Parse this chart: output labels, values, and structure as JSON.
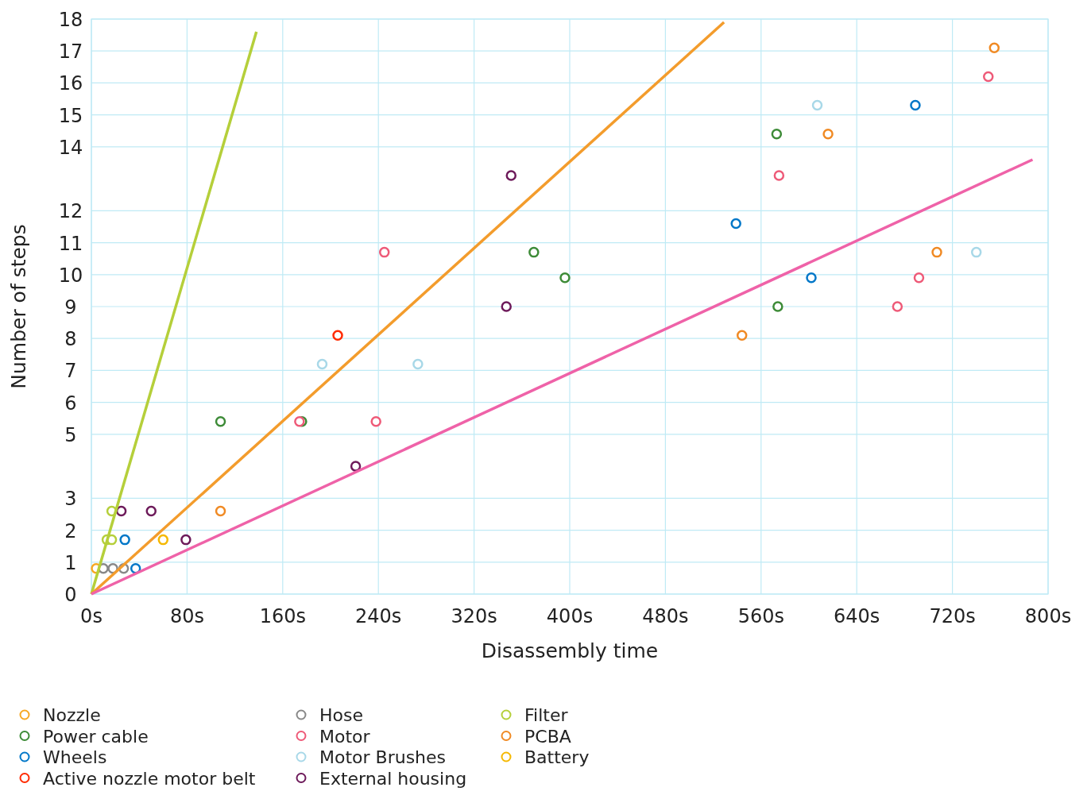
{
  "chart_data": {
    "type": "scatter",
    "xlabel": "Disassembly time",
    "ylabel": "Number of steps",
    "xlim": [
      0,
      800
    ],
    "ylim": [
      0,
      18
    ],
    "xticks": [
      {
        "value": 0,
        "label": "0s"
      },
      {
        "value": 80,
        "label": "80s"
      },
      {
        "value": 160,
        "label": "160s"
      },
      {
        "value": 240,
        "label": "240s"
      },
      {
        "value": 320,
        "label": "320s"
      },
      {
        "value": 400,
        "label": "400s"
      },
      {
        "value": 480,
        "label": "480s"
      },
      {
        "value": 560,
        "label": "560s"
      },
      {
        "value": 640,
        "label": "640s"
      },
      {
        "value": 720,
        "label": "720s"
      },
      {
        "value": 800,
        "label": "800s"
      }
    ],
    "yticks": [
      0,
      1,
      2,
      3,
      5,
      6,
      7,
      8,
      9,
      10,
      11,
      12,
      14,
      15,
      16,
      17,
      18
    ],
    "grid": true,
    "legend": "bottom left",
    "marker": "circle",
    "series": [
      {
        "name": "Nozzle",
        "color": "#f7a823",
        "x": [
          4
        ],
        "values": [
          0.8
        ]
      },
      {
        "name": "Power cable",
        "color": "#3d8b37",
        "x": [
          108,
          176,
          370,
          396,
          573,
          574
        ],
        "values": [
          5.4,
          5.4,
          10.7,
          9.9,
          14.4,
          9.0
        ]
      },
      {
        "name": "Wheels",
        "color": "#0077c8",
        "x": [
          28,
          37,
          539,
          602,
          689
        ],
        "values": [
          1.7,
          0.8,
          11.6,
          9.9,
          15.3
        ]
      },
      {
        "name": "Active nozzle motor belt",
        "color": "#ff2a00",
        "x": [
          206
        ],
        "values": [
          8.1
        ]
      },
      {
        "name": "Hose",
        "color": "#888888",
        "x": [
          10,
          18,
          27
        ],
        "values": [
          0.8,
          0.8,
          0.8
        ]
      },
      {
        "name": "Motor",
        "color": "#ee5a78",
        "x": [
          174,
          238,
          245,
          575,
          674,
          692,
          750
        ],
        "values": [
          5.4,
          5.4,
          10.7,
          13.1,
          9.0,
          9.9,
          16.2
        ]
      },
      {
        "name": "Motor Brushes",
        "color": "#a8d8e8",
        "x": [
          193,
          273,
          607,
          740
        ],
        "values": [
          7.2,
          7.2,
          15.3,
          10.7
        ]
      },
      {
        "name": "External housing",
        "color": "#6d1a5a",
        "x": [
          25,
          50,
          79,
          221,
          347,
          351
        ],
        "values": [
          2.6,
          2.6,
          1.7,
          4.0,
          9.0,
          13.1
        ]
      },
      {
        "name": "Filter",
        "color": "#b5cf3a",
        "x": [
          13,
          17,
          17
        ],
        "values": [
          1.7,
          1.7,
          2.6
        ]
      },
      {
        "name": "PCBA",
        "color": "#f08a24",
        "x": [
          108,
          544,
          616,
          707,
          755
        ],
        "values": [
          2.6,
          8.1,
          14.4,
          10.7,
          17.1
        ]
      },
      {
        "name": "Battery",
        "color": "#f5b800",
        "x": [
          60
        ],
        "values": [
          1.7
        ]
      },
      {
        "type": "line",
        "color": "#b5cf3a",
        "x": [
          0,
          138
        ],
        "values": [
          0,
          17.6
        ],
        "marker": "none"
      },
      {
        "type": "line",
        "color": "#f39c2c",
        "x": [
          0,
          529
        ],
        "values": [
          0,
          17.9
        ],
        "marker": "none"
      },
      {
        "type": "line",
        "color": "#ef62a8",
        "x": [
          0,
          787
        ],
        "values": [
          0,
          13.6
        ],
        "marker": "none"
      }
    ]
  }
}
